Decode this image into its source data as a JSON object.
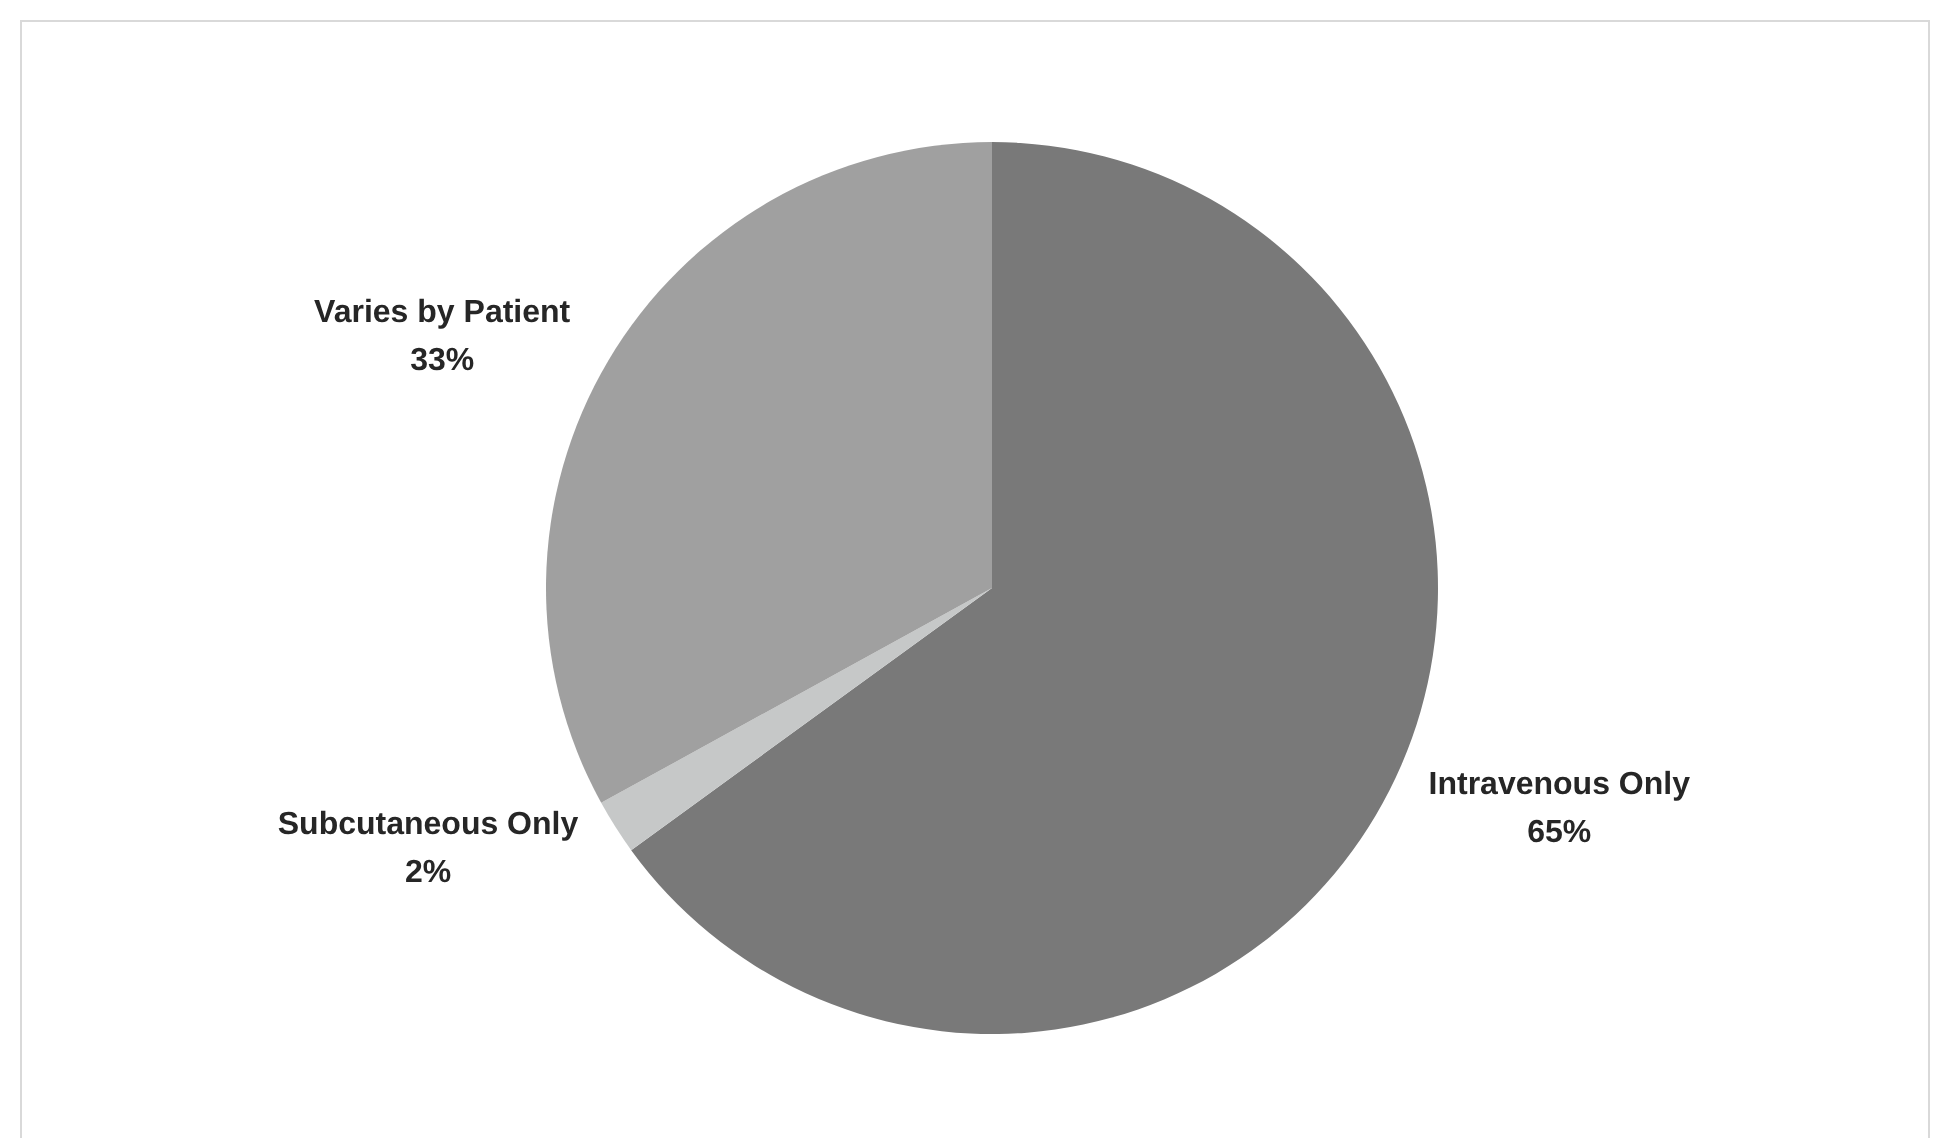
{
  "chart_data": {
    "type": "pie",
    "categories": [
      "Intravenous Only",
      "Subcutaneous Only",
      "Varies by Patient"
    ],
    "values": [
      65,
      2,
      33
    ],
    "colors": [
      "#797979",
      "#c6c8c8",
      "#a0a0a0"
    ],
    "value_labels": [
      "65%",
      "2%",
      "33%"
    ]
  }
}
